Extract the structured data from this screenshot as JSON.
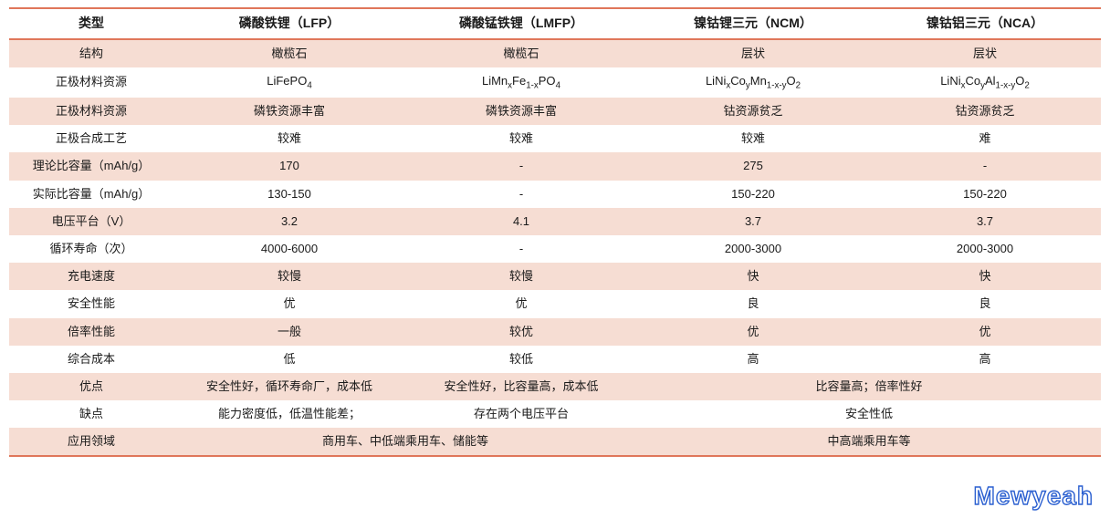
{
  "colors": {
    "border": "#e0765a",
    "stripe": "#f6ddd3",
    "background": "#ffffff",
    "watermark_stroke": "#2a5fd0",
    "text": "#1a1a1a"
  },
  "fonts": {
    "body_size": 13,
    "header_size": 14,
    "watermark_size": 28
  },
  "columns": [
    {
      "key": "label",
      "header": "类型"
    },
    {
      "key": "lfp",
      "header": "磷酸铁锂（LFP）"
    },
    {
      "key": "lmfp",
      "header": "磷酸锰铁锂（LMFP）"
    },
    {
      "key": "ncm",
      "header": "镍钴锂三元（NCM）"
    },
    {
      "key": "nca",
      "header": "镍钴铝三元（NCA）"
    }
  ],
  "rows": [
    {
      "label": "结构",
      "cells": [
        "橄榄石",
        "橄榄石",
        "层状",
        "层状"
      ],
      "stripe": true
    },
    {
      "label": "正极材料资源",
      "cells_html": [
        "LiFePO<sub>4</sub>",
        "LiMn<sub>x</sub>Fe<sub>1-x</sub>PO<sub>4</sub>",
        "LiNi<sub>x</sub>Co<sub>y</sub>Mn<sub>1-x-y</sub>O<sub>2</sub>",
        "LiNi<sub>x</sub>Co<sub>y</sub>Al<sub>1-x-y</sub>O<sub>2</sub>"
      ]
    },
    {
      "label": "正极材料资源",
      "cells": [
        "磷铁资源丰富",
        "磷铁资源丰富",
        "钴资源贫乏",
        "钴资源贫乏"
      ],
      "stripe": true
    },
    {
      "label": "正极合成工艺",
      "cells": [
        "较难",
        "较难",
        "较难",
        "难"
      ]
    },
    {
      "label": "理论比容量（mAh/g）",
      "cells": [
        "170",
        "-",
        "275",
        "-"
      ],
      "stripe": true
    },
    {
      "label": "实际比容量（mAh/g）",
      "cells": [
        "130-150",
        "-",
        "150-220",
        "150-220"
      ]
    },
    {
      "label": "电压平台（V）",
      "cells": [
        "3.2",
        "4.1",
        "3.7",
        "3.7"
      ],
      "stripe": true
    },
    {
      "label": "循环寿命（次）",
      "cells": [
        "4000-6000",
        "-",
        "2000-3000",
        "2000-3000"
      ]
    },
    {
      "label": "充电速度",
      "cells": [
        "较慢",
        "较慢",
        "快",
        "快"
      ],
      "stripe": true
    },
    {
      "label": "安全性能",
      "cells": [
        "优",
        "优",
        "良",
        "良"
      ]
    },
    {
      "label": "倍率性能",
      "cells": [
        "一般",
        "较优",
        "优",
        "优"
      ],
      "stripe": true
    },
    {
      "label": "综合成本",
      "cells": [
        "低",
        "较低",
        "高",
        "高"
      ]
    },
    {
      "label": "优点",
      "cells": [
        "安全性好，循环寿命厂，成本低",
        "安全性好，比容量高，成本低",
        {
          "text": "比容量高；倍率性好",
          "colspan": 2
        }
      ],
      "stripe": true
    },
    {
      "label": "缺点",
      "cells": [
        "能力密度低，低温性能差；",
        "存在两个电压平台",
        {
          "text": "安全性低",
          "colspan": 2
        }
      ]
    },
    {
      "label": "应用领域",
      "cells": [
        {
          "text": "商用车、中低端乘用车、储能等",
          "colspan": 2
        },
        {
          "text": "中高端乘用车等",
          "colspan": 2
        }
      ],
      "stripe": true
    }
  ],
  "watermark": "Mewyeah"
}
